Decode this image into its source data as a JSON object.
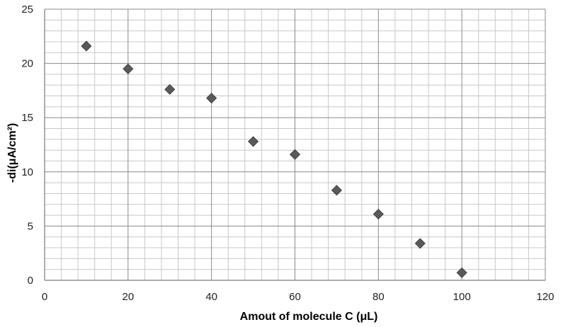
{
  "chart_data": {
    "type": "scatter",
    "title": "",
    "xlabel": "Amout  of molecule C (μL)",
    "ylabel": "-di(μA/cm²)",
    "xlim": [
      0,
      120
    ],
    "ylim": [
      0,
      25
    ],
    "x_ticks": [
      "0",
      "20",
      "40",
      "60",
      "80",
      "100",
      "120"
    ],
    "y_ticks": [
      "0",
      "5",
      "10",
      "15",
      "20",
      "25"
    ],
    "grid": "on (major and minor)",
    "legend": "none",
    "marker": "diamond",
    "marker_color": "#595959",
    "series": [
      {
        "points": [
          {
            "x": 10,
            "y": 21.6
          },
          {
            "x": 20,
            "y": 19.5
          },
          {
            "x": 30,
            "y": 17.6
          },
          {
            "x": 40,
            "y": 16.8
          },
          {
            "x": 50,
            "y": 12.8
          },
          {
            "x": 60,
            "y": 11.6
          },
          {
            "x": 70,
            "y": 8.3
          },
          {
            "x": 80,
            "y": 6.1
          },
          {
            "x": 90,
            "y": 3.4
          },
          {
            "x": 100,
            "y": 0.7
          }
        ]
      }
    ]
  }
}
